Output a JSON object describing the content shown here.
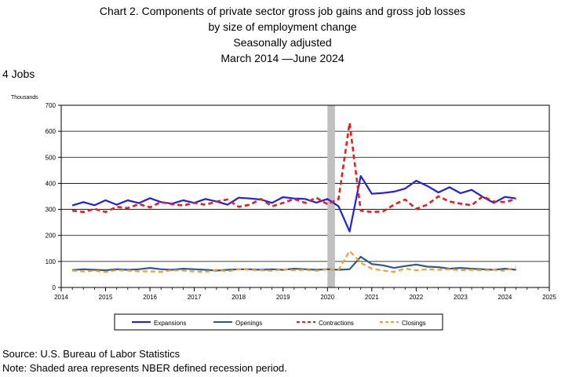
{
  "title": {
    "line1": "Chart 2. Components of private sector gross job gains and gross job losses",
    "line2": "by size of employment change",
    "line3": "Seasonally adjusted",
    "line4": "March 2014 —June 2024"
  },
  "subtitle": "4 Jobs",
  "source": "Source: U.S. Bureau of Labor Statistics",
  "note": "Note: Shaded area represents NBER defined recession period.",
  "colors": {
    "expansions": "#1f1fe6",
    "openings": "#2e5a8a",
    "contractions": "#e61e1e",
    "closings": "#f0a030",
    "recession": "#c0c0c0"
  },
  "chart_data": {
    "type": "line",
    "ylabel": "Thousands",
    "ylim": [
      0,
      700
    ],
    "yticks": [
      "0",
      "100",
      "200",
      "300",
      "400",
      "500",
      "600",
      "700"
    ],
    "xlim": [
      2014,
      2025
    ],
    "xticks": [
      "2014",
      "2015",
      "2016",
      "2017",
      "2018",
      "2019",
      "2020",
      "2021",
      "2022",
      "2023",
      "2024",
      "2025"
    ],
    "grid": true,
    "legend": "bottom",
    "recession": [
      2020.0,
      2020.17
    ],
    "x": [
      2014.25,
      2014.5,
      2014.75,
      2015.0,
      2015.25,
      2015.5,
      2015.75,
      2016.0,
      2016.25,
      2016.5,
      2016.75,
      2017.0,
      2017.25,
      2017.5,
      2017.75,
      2018.0,
      2018.25,
      2018.5,
      2018.75,
      2019.0,
      2019.25,
      2019.5,
      2019.75,
      2020.0,
      2020.25,
      2020.5,
      2020.75,
      2021.0,
      2021.25,
      2021.5,
      2021.75,
      2022.0,
      2022.25,
      2022.5,
      2022.75,
      2023.0,
      2023.25,
      2023.5,
      2023.75,
      2024.0,
      2024.25
    ],
    "series": [
      {
        "name": "Expansions",
        "values": [
          315,
          328,
          316,
          335,
          318,
          335,
          324,
          343,
          328,
          322,
          335,
          325,
          340,
          330,
          318,
          345,
          342,
          338,
          325,
          347,
          342,
          340,
          326,
          340,
          312,
          215,
          428,
          360,
          363,
          368,
          380,
          410,
          390,
          365,
          385,
          362,
          375,
          348,
          325,
          348,
          342
        ]
      },
      {
        "name": "Openings",
        "values": [
          67,
          70,
          68,
          66,
          70,
          68,
          70,
          75,
          70,
          68,
          72,
          70,
          68,
          65,
          68,
          70,
          70,
          68,
          70,
          68,
          72,
          70,
          68,
          70,
          68,
          70,
          118,
          90,
          85,
          75,
          82,
          88,
          80,
          78,
          72,
          75,
          72,
          70,
          68,
          72,
          68
        ]
      },
      {
        "name": "Contractions",
        "values": [
          295,
          290,
          302,
          290,
          310,
          305,
          320,
          308,
          328,
          320,
          315,
          325,
          318,
          330,
          338,
          310,
          318,
          340,
          312,
          325,
          340,
          325,
          345,
          320,
          340,
          632,
          295,
          290,
          292,
          318,
          338,
          302,
          318,
          350,
          330,
          322,
          316,
          350,
          330,
          328,
          340
        ]
      },
      {
        "name": "Closings",
        "values": [
          65,
          62,
          64,
          60,
          66,
          65,
          62,
          62,
          60,
          66,
          65,
          62,
          60,
          68,
          62,
          70,
          68,
          66,
          64,
          70,
          66,
          68,
          64,
          70,
          68,
          140,
          95,
          72,
          65,
          60,
          72,
          66,
          70,
          68,
          70,
          66,
          68,
          66,
          68,
          64,
          78
        ]
      }
    ]
  }
}
